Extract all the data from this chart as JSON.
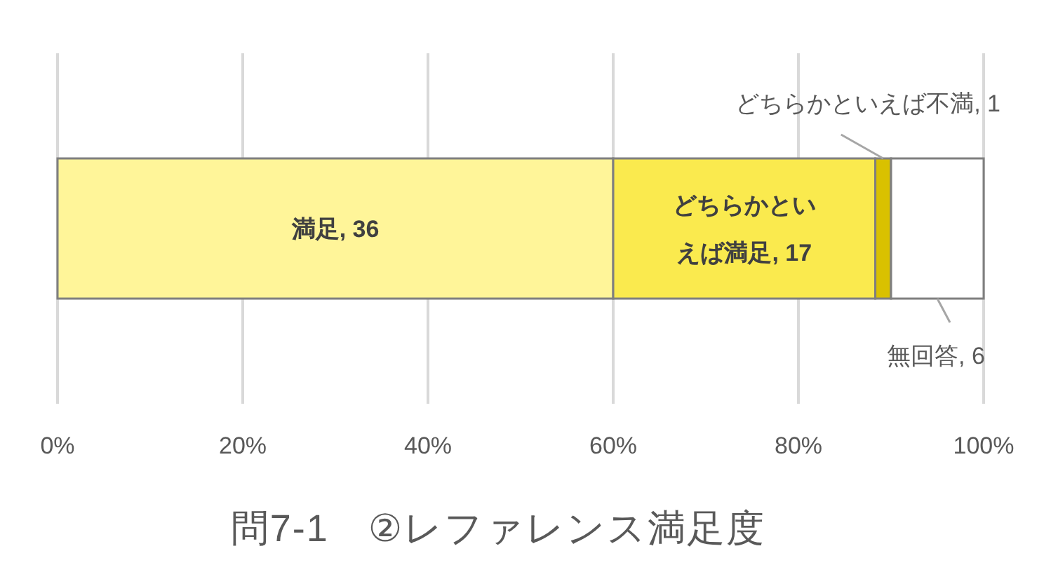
{
  "chart_data": {
    "type": "bar",
    "orientation": "horizontal",
    "stacked": true,
    "categories": [
      null
    ],
    "series": [
      {
        "color": "#fff599",
        "values": [
          60
        ]
      },
      {
        "color": "#faea4e",
        "values": [
          28.3
        ]
      },
      {
        "color": "#d9c100",
        "values": [
          1.7
        ]
      },
      {
        "color": "#ffffff",
        "values": [
          10
        ]
      }
    ],
    "xlim": [
      0,
      100
    ],
    "xticks": [
      {
        "value": 0,
        "label": "0%"
      },
      {
        "value": 20,
        "label": "20%"
      },
      {
        "value": 40,
        "label": "40%"
      },
      {
        "value": 60,
        "label": "60%"
      },
      {
        "value": 80,
        "label": "80%"
      },
      {
        "value": 100,
        "label": "100%"
      }
    ],
    "grid": "x",
    "title": "問7-1　②レファレンス満足度",
    "annotations": [
      "満足, 36",
      "どちらかといえば満足, 17",
      "どちらかといえば不満, 1",
      "無回答, 6"
    ]
  }
}
